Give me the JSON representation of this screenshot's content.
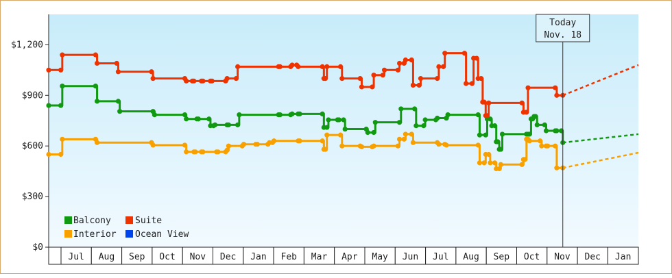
{
  "chart_data": {
    "type": "line",
    "step": true,
    "title": "",
    "xlabel": "",
    "ylabel": "",
    "y_ticks": [
      "$0",
      "$300",
      "$600",
      "$900",
      "$1,200"
    ],
    "ylim": [
      0,
      1380
    ],
    "x_months": [
      "Jul",
      "Aug",
      "Sep",
      "Oct",
      "Nov",
      "Dec",
      "Jan",
      "Feb",
      "Mar",
      "Apr",
      "May",
      "Jun",
      "Jul",
      "Aug",
      "Sep",
      "Oct",
      "Nov",
      "Dec",
      "Jan"
    ],
    "x_range_days": [
      0,
      390
    ],
    "today_marker": {
      "line1": "Today",
      "line2": "Nov. 18",
      "day": 340
    },
    "legend": {
      "placement": "bottom-left"
    },
    "series": [
      {
        "name": "Balcony",
        "color": "#119911",
        "points": [
          [
            0,
            840
          ],
          [
            8,
            840
          ],
          [
            9,
            955
          ],
          [
            31,
            955
          ],
          [
            32,
            865
          ],
          [
            46,
            865
          ],
          [
            47,
            805
          ],
          [
            69,
            805
          ],
          [
            70,
            785
          ],
          [
            90,
            785
          ],
          [
            91,
            760
          ],
          [
            98,
            760
          ],
          [
            99,
            760
          ],
          [
            106,
            760
          ],
          [
            107,
            720
          ],
          [
            109,
            720
          ],
          [
            110,
            725
          ],
          [
            118,
            725
          ],
          [
            119,
            725
          ],
          [
            125,
            725
          ],
          [
            126,
            785
          ],
          [
            152,
            785
          ],
          [
            153,
            785
          ],
          [
            160,
            785
          ],
          [
            161,
            790
          ],
          [
            165,
            790
          ],
          [
            166,
            790
          ],
          [
            181,
            790
          ],
          [
            182,
            710
          ],
          [
            184,
            710
          ],
          [
            185,
            755
          ],
          [
            191,
            755
          ],
          [
            192,
            755
          ],
          [
            195,
            755
          ],
          [
            196,
            700
          ],
          [
            210,
            700
          ],
          [
            211,
            680
          ],
          [
            215,
            680
          ],
          [
            216,
            740
          ],
          [
            232,
            740
          ],
          [
            233,
            820
          ],
          [
            242,
            820
          ],
          [
            243,
            720
          ],
          [
            248,
            720
          ],
          [
            249,
            755
          ],
          [
            256,
            755
          ],
          [
            257,
            765
          ],
          [
            263,
            765
          ],
          [
            264,
            785
          ],
          [
            284,
            785
          ],
          [
            285,
            665
          ],
          [
            289,
            665
          ],
          [
            290,
            760
          ],
          [
            292,
            760
          ],
          [
            293,
            720
          ],
          [
            295,
            720
          ],
          [
            296,
            625
          ],
          [
            297,
            625
          ],
          [
            298,
            580
          ],
          [
            299,
            580
          ],
          [
            300,
            670
          ],
          [
            316,
            670
          ],
          [
            317,
            670
          ],
          [
            318,
            670
          ],
          [
            319,
            760
          ],
          [
            320,
            760
          ],
          [
            321,
            775
          ],
          [
            322,
            775
          ],
          [
            323,
            725
          ],
          [
            328,
            725
          ],
          [
            329,
            690
          ],
          [
            335,
            690
          ],
          [
            336,
            690
          ],
          [
            339,
            690
          ],
          [
            340,
            620
          ]
        ],
        "forecast": [
          [
            340,
            620
          ],
          [
            390,
            670
          ]
        ]
      },
      {
        "name": "Suite",
        "color": "#ee3300",
        "points": [
          [
            0,
            1050
          ],
          [
            8,
            1050
          ],
          [
            9,
            1140
          ],
          [
            31,
            1140
          ],
          [
            32,
            1090
          ],
          [
            45,
            1090
          ],
          [
            46,
            1040
          ],
          [
            68,
            1040
          ],
          [
            69,
            1000
          ],
          [
            90,
            1000
          ],
          [
            91,
            985
          ],
          [
            95,
            985
          ],
          [
            96,
            985
          ],
          [
            101,
            985
          ],
          [
            102,
            985
          ],
          [
            107,
            985
          ],
          [
            108,
            985
          ],
          [
            117,
            985
          ],
          [
            118,
            1000
          ],
          [
            124,
            1000
          ],
          [
            125,
            1070
          ],
          [
            152,
            1070
          ],
          [
            153,
            1070
          ],
          [
            160,
            1070
          ],
          [
            161,
            1080
          ],
          [
            164,
            1080
          ],
          [
            165,
            1070
          ],
          [
            181,
            1070
          ],
          [
            182,
            1000
          ],
          [
            183,
            1000
          ],
          [
            184,
            1070
          ],
          [
            193,
            1070
          ],
          [
            194,
            1000
          ],
          [
            206,
            1000
          ],
          [
            207,
            950
          ],
          [
            214,
            950
          ],
          [
            215,
            1020
          ],
          [
            221,
            1020
          ],
          [
            222,
            1050
          ],
          [
            231,
            1050
          ],
          [
            232,
            1090
          ],
          [
            235,
            1090
          ],
          [
            236,
            1110
          ],
          [
            240,
            1110
          ],
          [
            241,
            960
          ],
          [
            245,
            960
          ],
          [
            246,
            1000
          ],
          [
            257,
            1000
          ],
          [
            258,
            1070
          ],
          [
            261,
            1070
          ],
          [
            262,
            1150
          ],
          [
            275,
            1150
          ],
          [
            276,
            970
          ],
          [
            280,
            970
          ],
          [
            281,
            1120
          ],
          [
            283,
            1120
          ],
          [
            284,
            1000
          ],
          [
            286,
            1000
          ],
          [
            287,
            860
          ],
          [
            288,
            860
          ],
          [
            289,
            780
          ],
          [
            290,
            780
          ],
          [
            291,
            855
          ],
          [
            313,
            855
          ],
          [
            314,
            800
          ],
          [
            316,
            800
          ],
          [
            317,
            945
          ],
          [
            335,
            945
          ],
          [
            336,
            900
          ],
          [
            340,
            900
          ]
        ],
        "forecast": [
          [
            340,
            900
          ],
          [
            390,
            1080
          ]
        ]
      },
      {
        "name": "Interior",
        "color": "#f8a000",
        "points": [
          [
            0,
            550
          ],
          [
            8,
            550
          ],
          [
            9,
            640
          ],
          [
            31,
            640
          ],
          [
            32,
            620
          ],
          [
            68,
            620
          ],
          [
            69,
            605
          ],
          [
            90,
            605
          ],
          [
            91,
            565
          ],
          [
            96,
            565
          ],
          [
            97,
            565
          ],
          [
            101,
            565
          ],
          [
            102,
            565
          ],
          [
            111,
            565
          ],
          [
            112,
            565
          ],
          [
            117,
            565
          ],
          [
            118,
            575
          ],
          [
            119,
            600
          ],
          [
            128,
            600
          ],
          [
            129,
            610
          ],
          [
            137,
            610
          ],
          [
            138,
            610
          ],
          [
            145,
            610
          ],
          [
            146,
            620
          ],
          [
            148,
            620
          ],
          [
            149,
            630
          ],
          [
            165,
            630
          ],
          [
            166,
            630
          ],
          [
            181,
            630
          ],
          [
            182,
            580
          ],
          [
            183,
            580
          ],
          [
            184,
            665
          ],
          [
            193,
            665
          ],
          [
            194,
            600
          ],
          [
            206,
            600
          ],
          [
            207,
            595
          ],
          [
            214,
            595
          ],
          [
            215,
            600
          ],
          [
            231,
            600
          ],
          [
            232,
            640
          ],
          [
            235,
            640
          ],
          [
            236,
            670
          ],
          [
            240,
            670
          ],
          [
            241,
            620
          ],
          [
            257,
            620
          ],
          [
            258,
            610
          ],
          [
            262,
            610
          ],
          [
            263,
            605
          ],
          [
            284,
            605
          ],
          [
            285,
            500
          ],
          [
            288,
            500
          ],
          [
            289,
            550
          ],
          [
            291,
            550
          ],
          [
            292,
            500
          ],
          [
            295,
            500
          ],
          [
            296,
            465
          ],
          [
            298,
            465
          ],
          [
            299,
            490
          ],
          [
            313,
            490
          ],
          [
            314,
            520
          ],
          [
            315,
            520
          ],
          [
            316,
            640
          ],
          [
            317,
            640
          ],
          [
            318,
            630
          ],
          [
            325,
            630
          ],
          [
            326,
            600
          ],
          [
            329,
            600
          ],
          [
            330,
            600
          ],
          [
            335,
            600
          ],
          [
            336,
            470
          ],
          [
            340,
            470
          ]
        ],
        "forecast": [
          [
            340,
            470
          ],
          [
            390,
            560
          ]
        ]
      },
      {
        "name": "Ocean View",
        "color": "#0044ee",
        "points": [],
        "forecast": []
      }
    ]
  }
}
